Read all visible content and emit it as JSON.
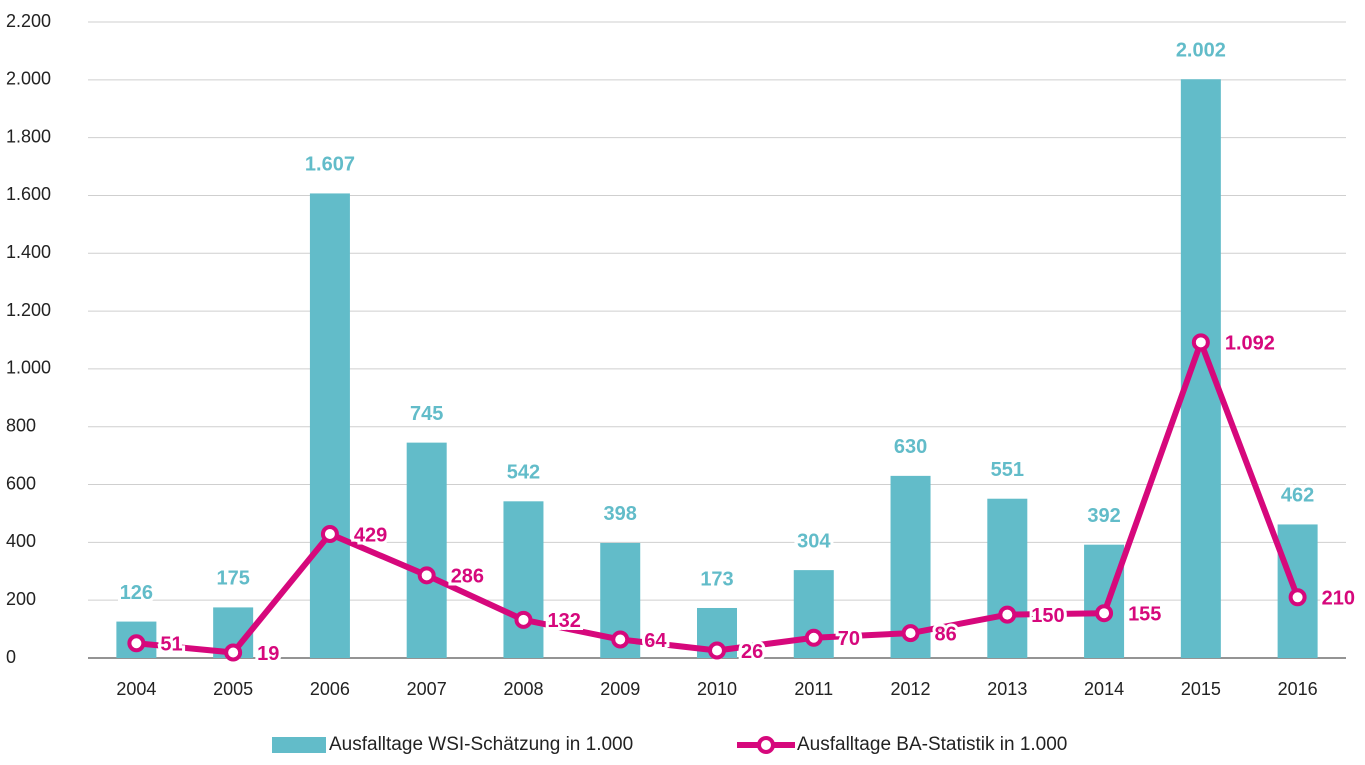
{
  "chart_data": {
    "type": "bar",
    "categories": [
      "2004",
      "2005",
      "2006",
      "2007",
      "2008",
      "2009",
      "2010",
      "2011",
      "2012",
      "2013",
      "2014",
      "2015",
      "2016"
    ],
    "series": [
      {
        "name": "Ausfalltage WSI-Schätzung in 1.000",
        "type": "bar",
        "color": "#62bcc9",
        "values": [
          126,
          175,
          1607,
          745,
          542,
          398,
          173,
          304,
          630,
          551,
          392,
          2002,
          462
        ],
        "value_labels": [
          "126",
          "175",
          "1.607",
          "745",
          "542",
          "398",
          "173",
          "304",
          "630",
          "551",
          "392",
          "2.002",
          "462"
        ]
      },
      {
        "name": "Ausfalltage BA-Statistik in 1.000",
        "type": "line",
        "color": "#d6087c",
        "values": [
          51,
          19,
          429,
          286,
          132,
          64,
          26,
          70,
          86,
          150,
          155,
          1092,
          210
        ],
        "value_labels": [
          "51",
          "19",
          "429",
          "286",
          "132",
          "64",
          "26",
          "70",
          "86",
          "150",
          "155",
          "1.092",
          "210"
        ]
      }
    ],
    "ylim": [
      0,
      2200
    ],
    "yticks": [
      0,
      200,
      400,
      600,
      800,
      {
        "value": 1000,
        "label": "1.000"
      },
      {
        "value": 1200,
        "label": "1.200"
      },
      {
        "value": 1400,
        "label": "1.400"
      },
      {
        "value": 1600,
        "label": "1.600"
      },
      {
        "value": 1800,
        "label": "1.800"
      },
      {
        "value": 2000,
        "label": "2.000"
      },
      {
        "value": 2200,
        "label": "2.200"
      }
    ],
    "grid": true,
    "legend": "bottom"
  }
}
